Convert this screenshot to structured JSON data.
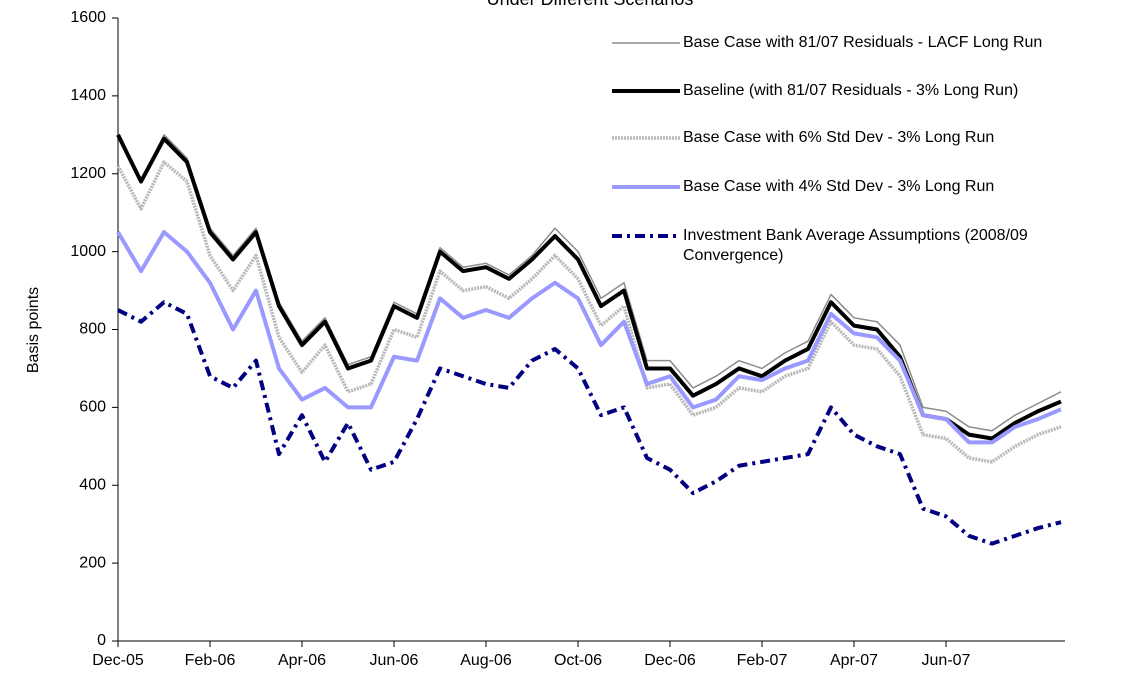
{
  "chart_data": {
    "type": "line",
    "title": "Under Different Scenarios",
    "y_label": "Basis points",
    "categories": [
      "Dec-05",
      null,
      null,
      null,
      "Feb-06",
      null,
      null,
      null,
      "Apr-06",
      null,
      null,
      null,
      "Jun-06",
      null,
      null,
      null,
      "Aug-06",
      null,
      null,
      null,
      "Oct-06",
      null,
      null,
      null,
      "Dec-06",
      null,
      null,
      null,
      "Feb-07",
      null,
      null,
      null,
      "Apr-07",
      null,
      null,
      null,
      "Jun-07",
      null,
      null,
      null,
      null,
      null
    ],
    "ylim": [
      0,
      1600
    ],
    "yticks": [
      0,
      200,
      400,
      600,
      800,
      1000,
      1200,
      1400,
      1600
    ],
    "grid": false,
    "legend": "upper right",
    "series": [
      {
        "name": "Base Case with 81/07 Residuals - LACF Long Run",
        "color": "#8c8c8c",
        "values": [
          1300,
          1180,
          1300,
          1240,
          1060,
          990,
          1060,
          870,
          770,
          830,
          710,
          730,
          870,
          840,
          1010,
          960,
          970,
          940,
          990,
          1060,
          1000,
          880,
          920,
          720,
          720,
          650,
          680,
          720,
          700,
          740,
          770,
          890,
          830,
          820,
          760,
          600,
          590,
          550,
          540,
          580,
          610,
          640
        ]
      },
      {
        "name": "Baseline (with 81/07 Residuals - 3% Long Run)",
        "color": "#000000",
        "values": [
          1300,
          1180,
          1290,
          1230,
          1050,
          980,
          1050,
          860,
          760,
          820,
          700,
          720,
          860,
          830,
          1000,
          950,
          960,
          930,
          980,
          1040,
          980,
          860,
          900,
          700,
          700,
          630,
          660,
          700,
          680,
          720,
          750,
          870,
          810,
          800,
          730,
          580,
          570,
          530,
          520,
          560,
          590,
          615
        ]
      },
      {
        "name": "Base Case with 6% Std Dev - 3% Long Run",
        "color": "#b8b8b8",
        "values": [
          1220,
          1110,
          1230,
          1180,
          990,
          900,
          990,
          780,
          690,
          760,
          640,
          660,
          800,
          780,
          950,
          900,
          910,
          880,
          930,
          990,
          930,
          810,
          860,
          650,
          660,
          580,
          600,
          650,
          640,
          680,
          700,
          820,
          760,
          750,
          680,
          530,
          520,
          470,
          460,
          500,
          530,
          550
        ]
      },
      {
        "name": "Base Case with 4% Std Dev - 3% Long Run",
        "color": "#9999ff",
        "values": [
          1050,
          950,
          1050,
          1000,
          920,
          800,
          900,
          700,
          620,
          650,
          600,
          600,
          730,
          720,
          880,
          830,
          850,
          830,
          880,
          920,
          880,
          760,
          820,
          660,
          680,
          600,
          620,
          680,
          670,
          700,
          720,
          840,
          790,
          780,
          720,
          580,
          570,
          510,
          510,
          550,
          570,
          595
        ]
      },
      {
        "name": "Investment Bank Average Assumptions (2008/09 Convergence)",
        "color": "#000080",
        "values": [
          850,
          820,
          870,
          840,
          680,
          650,
          720,
          480,
          580,
          460,
          560,
          440,
          460,
          570,
          700,
          680,
          660,
          650,
          720,
          750,
          700,
          580,
          600,
          470,
          440,
          380,
          410,
          450,
          460,
          470,
          480,
          600,
          530,
          500,
          480,
          340,
          320,
          270,
          250,
          270,
          290,
          305
        ]
      }
    ]
  }
}
